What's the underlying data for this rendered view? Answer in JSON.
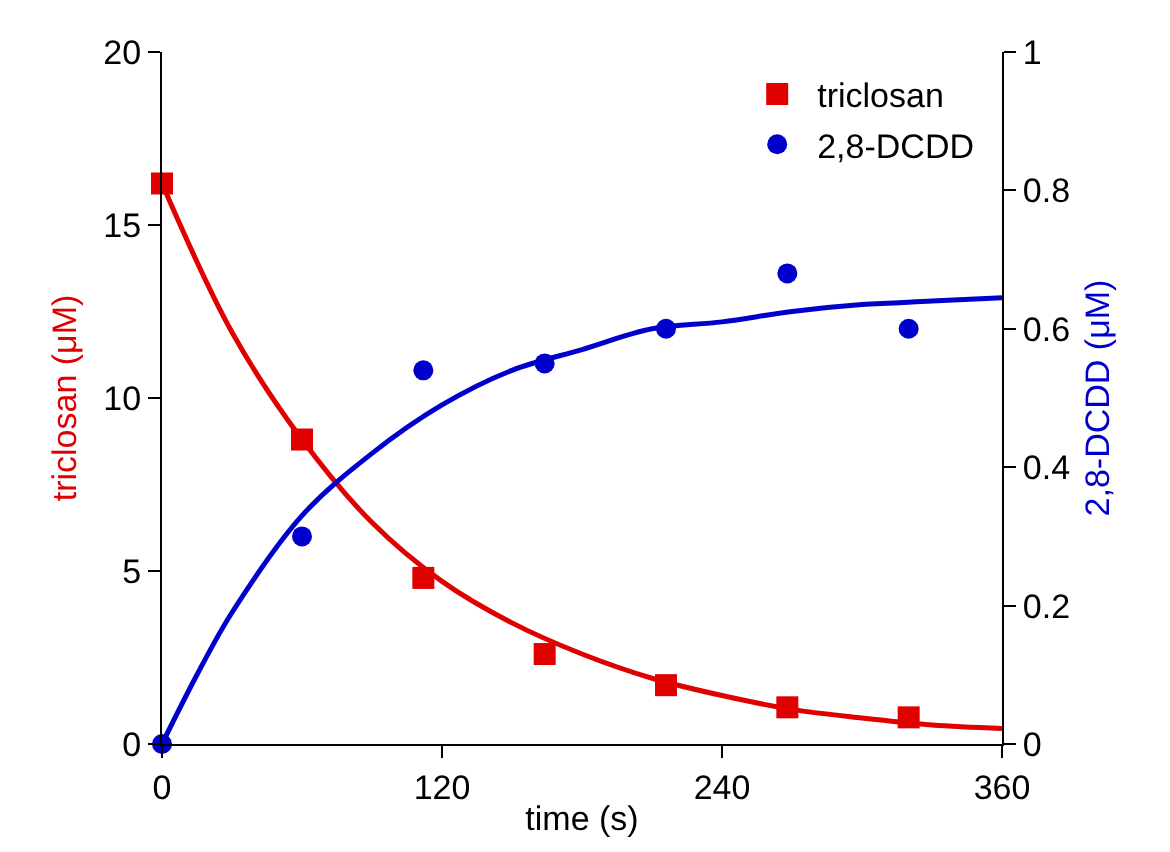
{
  "chart_data": {
    "type": "line",
    "xlabel": "time (s)",
    "ylabel": "triclosan (μM)",
    "y2label": "2,8-DCDD (μM)",
    "xlim": [
      0,
      360
    ],
    "xticks": [
      0,
      120,
      240,
      360
    ],
    "ylim": [
      0,
      20
    ],
    "yticks": [
      0,
      5,
      10,
      15,
      20
    ],
    "y2lim": [
      0,
      1
    ],
    "y2ticks": [
      0,
      0.2,
      0.4,
      0.6,
      0.8,
      1
    ],
    "legend": "top right",
    "series": [
      {
        "name": "triclosan",
        "type": "scatter",
        "marker": "square",
        "color": "#e00000",
        "x": [
          0,
          60,
          112,
          164,
          216,
          268,
          320
        ],
        "values": [
          16.2,
          8.8,
          4.8,
          2.6,
          1.7,
          1.06,
          0.77
        ]
      },
      {
        "name": "2,8-DCDD",
        "type": "scatter",
        "marker": "circle",
        "color": "#0000cc",
        "axis": "y2",
        "x": [
          0,
          60,
          112,
          164,
          216,
          268,
          320
        ],
        "values": [
          0,
          0.3,
          0.54,
          0.55,
          0.6,
          0.68,
          0.6
        ]
      },
      {
        "marker": "none",
        "color": "#e00000",
        "x": [
          0,
          30,
          60,
          90,
          120,
          150,
          180,
          210,
          240,
          270,
          300,
          330,
          360
        ],
        "values": [
          16.2,
          11.9,
          8.8,
          6.4,
          4.7,
          3.5,
          2.6,
          1.9,
          1.4,
          1.0,
          0.75,
          0.55,
          0.45
        ]
      },
      {
        "marker": "none",
        "color": "#0000cc",
        "axis": "y2",
        "x": [
          0,
          15,
          30,
          60,
          90,
          120,
          150,
          180,
          210,
          240,
          270,
          300,
          330,
          360
        ],
        "values": [
          0,
          0.1,
          0.19,
          0.33,
          0.42,
          0.49,
          0.54,
          0.57,
          0.6,
          0.61,
          0.625,
          0.635,
          0.64,
          0.645
        ]
      }
    ]
  }
}
